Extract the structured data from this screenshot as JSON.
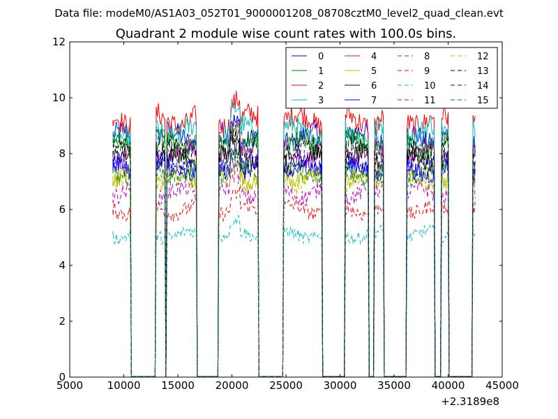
{
  "figure": {
    "suptitle": "Data file: modeM0/AS1A03_052T01_9000001208_08708cztM0_level2_quad_clean.evt",
    "x_offset_label": "+2.3189e8"
  },
  "chart_data": {
    "type": "line",
    "title": "Quadrant 2 module wise count rates with 100.0s bins.",
    "xlabel": "",
    "ylabel": "",
    "xlim": [
      5000,
      45000
    ],
    "ylim": [
      0,
      12
    ],
    "x_ticks": [
      5000,
      10000,
      15000,
      20000,
      25000,
      30000,
      35000,
      40000,
      45000
    ],
    "y_ticks": [
      0,
      2,
      4,
      6,
      8,
      10,
      12
    ],
    "grid": false,
    "legend": "top-right, 4 columns",
    "segments": [
      [
        9000,
        10600
      ],
      [
        13000,
        13800
      ],
      [
        14000,
        16700
      ],
      [
        18800,
        22400
      ],
      [
        24800,
        28300
      ],
      [
        30500,
        32600
      ],
      [
        33200,
        34000
      ],
      [
        36200,
        38700
      ],
      [
        39400,
        40000
      ],
      [
        42300,
        42500
      ]
    ],
    "series": [
      {
        "name": "0",
        "color": "#0000ff",
        "style": "solid",
        "level": 8.6
      },
      {
        "name": "1",
        "color": "#008000",
        "style": "solid",
        "level": 8.3
      },
      {
        "name": "2",
        "color": "#ff0000",
        "style": "solid",
        "level": 9.2
      },
      {
        "name": "3",
        "color": "#00bfbf",
        "style": "solid",
        "level": 8.8
      },
      {
        "name": "4",
        "color": "#bf00bf",
        "style": "solid",
        "level": 8.0
      },
      {
        "name": "5",
        "color": "#bfbf00",
        "style": "solid",
        "level": 7.2
      },
      {
        "name": "6",
        "color": "#000000",
        "style": "solid",
        "level": 7.8
      },
      {
        "name": "7",
        "color": "#0000ff",
        "style": "solid",
        "level": 7.4
      },
      {
        "name": "8",
        "color": "#008000",
        "style": "dashed",
        "level": 8.4
      },
      {
        "name": "9",
        "color": "#ff0000",
        "style": "dashed",
        "level": 6.0
      },
      {
        "name": "10",
        "color": "#00bfbf",
        "style": "dashed",
        "level": 5.1
      },
      {
        "name": "11",
        "color": "#bf00bf",
        "style": "dashed",
        "level": 6.6
      },
      {
        "name": "12",
        "color": "#bfbf00",
        "style": "dashed",
        "level": 7.0
      },
      {
        "name": "13",
        "color": "#000000",
        "style": "dashed",
        "level": 8.1
      },
      {
        "name": "14",
        "color": "#0000ff",
        "style": "dashed",
        "level": 7.6
      },
      {
        "name": "15",
        "color": "#008000",
        "style": "dashed",
        "level": 7.3
      }
    ]
  }
}
